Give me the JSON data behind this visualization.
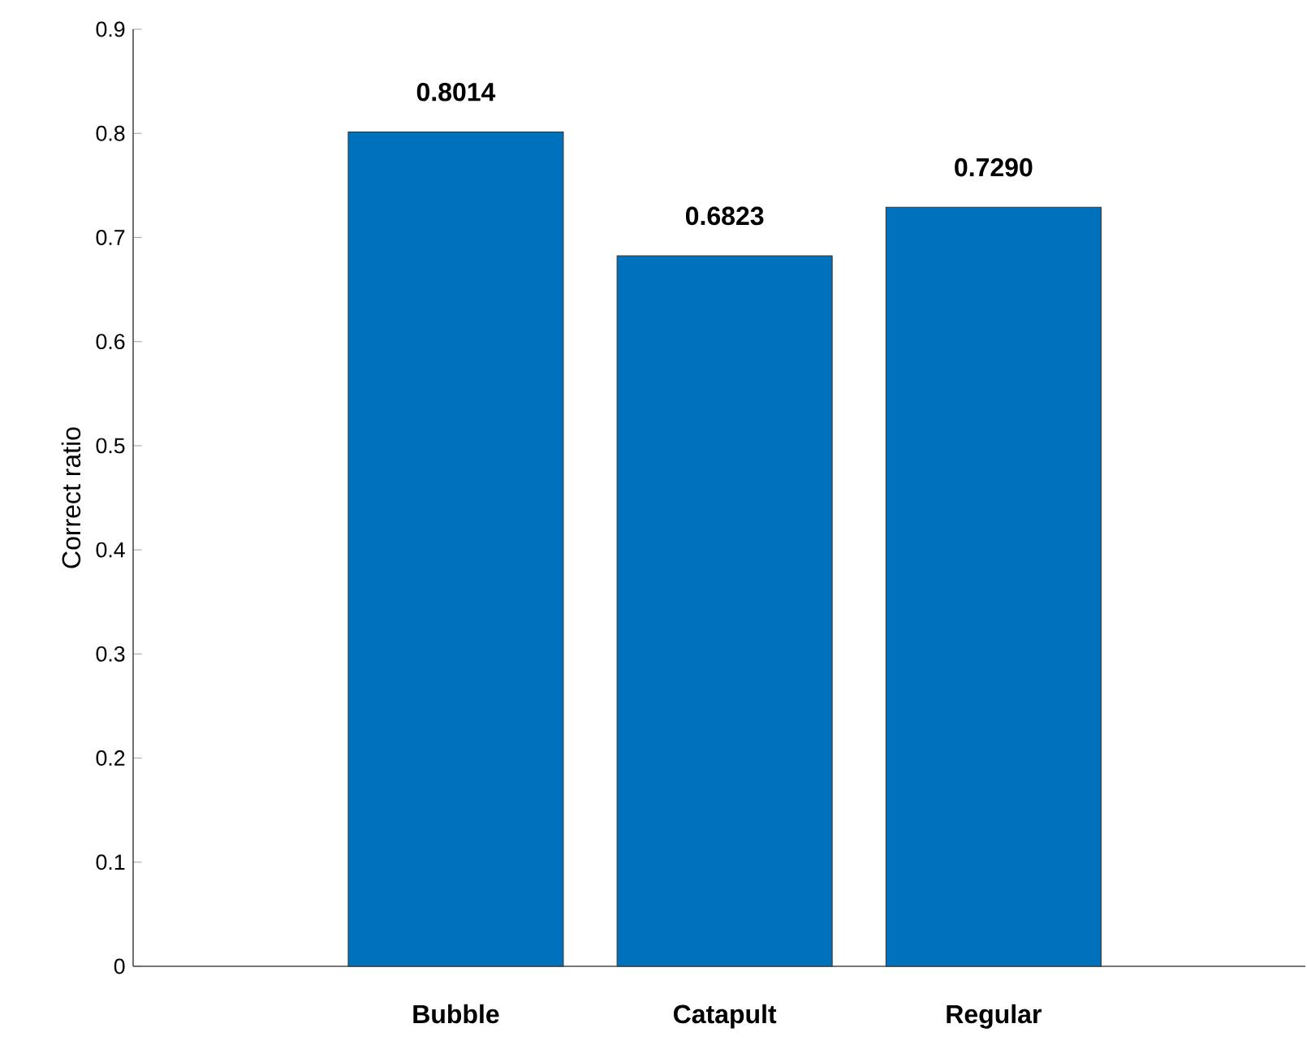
{
  "chart_data": {
    "type": "bar",
    "ylabel": "Correct ratio",
    "categories": [
      "Bubble",
      "Catapult",
      "Regular"
    ],
    "values": [
      0.8014,
      0.6823,
      0.729
    ],
    "value_labels": [
      "0.8014",
      "0.6823",
      "0.7290"
    ],
    "color": "#0072bd",
    "ylim": [
      0,
      0.9
    ],
    "yticks": [
      0,
      0.1,
      0.2,
      0.3,
      0.4,
      0.5,
      0.6,
      0.7,
      0.8,
      0.9
    ],
    "grid": false
  }
}
